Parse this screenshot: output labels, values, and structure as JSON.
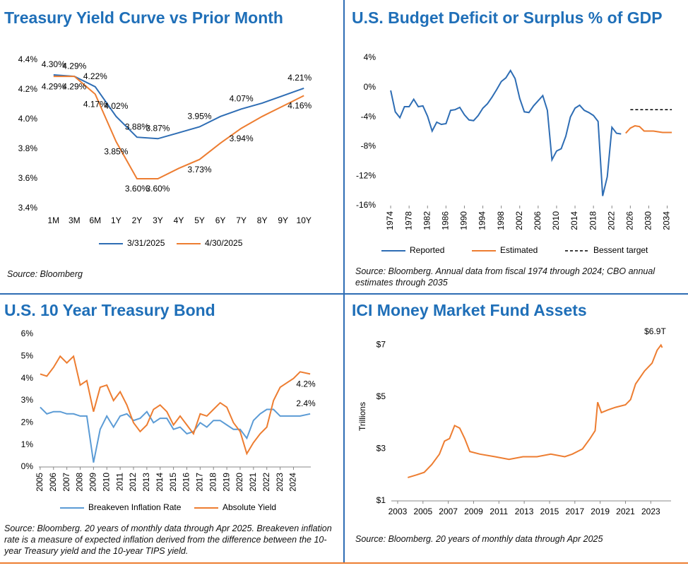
{
  "chart_data": [
    {
      "type": "line",
      "title": "Treasury Yield Curve vs Prior Month",
      "source": "Source: Bloomberg",
      "categories": [
        "1M",
        "3M",
        "6M",
        "1Y",
        "2Y",
        "3Y",
        "4Y",
        "5Y",
        "6Y",
        "7Y",
        "8Y",
        "9Y",
        "10Y"
      ],
      "series": [
        {
          "name": "3/31/2025",
          "color": "#2e6db4",
          "values": [
            4.3,
            4.29,
            4.22,
            4.02,
            3.88,
            3.87,
            3.91,
            3.95,
            4.02,
            4.07,
            4.11,
            4.16,
            4.21
          ],
          "value_labels": [
            "4.30%",
            "4.29%",
            "4.22%",
            "4.02%",
            "3.88%",
            "3.87%",
            null,
            "3.95%",
            null,
            "4.07%",
            null,
            null,
            "4.21%"
          ]
        },
        {
          "name": "4/30/2025",
          "color": "#ed7d31",
          "values": [
            4.29,
            4.29,
            4.17,
            3.85,
            3.6,
            3.6,
            3.67,
            3.73,
            3.84,
            3.94,
            4.02,
            4.09,
            4.16
          ],
          "value_labels": [
            "4.29%",
            "4.29%",
            "4.17%",
            "3.85%",
            "3.60%",
            "3.60%",
            null,
            "3.73%",
            null,
            "3.94%",
            null,
            null,
            "4.16%"
          ]
        }
      ],
      "ylim": [
        3.4,
        4.4
      ],
      "yticks": [
        {
          "value": 3.4,
          "label": "3.4%"
        },
        {
          "value": 3.6,
          "label": "3.6%"
        },
        {
          "value": 3.8,
          "label": "3.8%"
        },
        {
          "value": 4.0,
          "label": "4.0%"
        },
        {
          "value": 4.2,
          "label": "4.2%"
        },
        {
          "value": 4.4,
          "label": "4.4%"
        }
      ],
      "legend": "bottom",
      "grid": false
    },
    {
      "type": "line",
      "title": "U.S. Budget Deficit or Surplus % of GDP",
      "source": "Source: Bloomberg. Annual data from fiscal 1974 through 2024; CBO annual estimates through 2035",
      "series": [
        {
          "name": "Reported",
          "color": "#2e6db4",
          "x": [
            1974,
            1975,
            1976,
            1977,
            1978,
            1979,
            1980,
            1981,
            1982,
            1983,
            1984,
            1985,
            1986,
            1987,
            1988,
            1989,
            1990,
            1991,
            1992,
            1993,
            1994,
            1995,
            1996,
            1997,
            1998,
            1999,
            2000,
            2001,
            2002,
            2003,
            2004,
            2005,
            2006,
            2007,
            2008,
            2009,
            2010,
            2011,
            2012,
            2013,
            2014,
            2015,
            2016,
            2017,
            2018,
            2019,
            2020,
            2021,
            2022,
            2023,
            2024
          ],
          "values": [
            -0.4,
            -3.3,
            -4.1,
            -2.6,
            -2.6,
            -1.6,
            -2.6,
            -2.5,
            -3.9,
            -5.9,
            -4.7,
            -5.0,
            -4.9,
            -3.1,
            -3.0,
            -2.7,
            -3.7,
            -4.4,
            -4.5,
            -3.8,
            -2.8,
            -2.2,
            -1.3,
            -0.3,
            0.8,
            1.3,
            2.3,
            1.2,
            -1.5,
            -3.3,
            -3.4,
            -2.5,
            -1.8,
            -1.1,
            -3.1,
            -9.8,
            -8.6,
            -8.3,
            -6.6,
            -4.0,
            -2.8,
            -2.4,
            -3.1,
            -3.4,
            -3.8,
            -4.6,
            -14.7,
            -12.1,
            -5.4,
            -6.2,
            -6.3
          ]
        },
        {
          "name": "Estimated",
          "color": "#ed7d31",
          "x": [
            2025,
            2026,
            2027,
            2028,
            2029,
            2030,
            2031,
            2032,
            2033,
            2034,
            2035
          ],
          "values": [
            -6.2,
            -5.5,
            -5.2,
            -5.3,
            -5.9,
            -5.9,
            -5.9,
            -6.0,
            -6.1,
            -6.1,
            -6.1
          ]
        },
        {
          "name": "Bessent target",
          "color": "#000000",
          "dash": true,
          "x": [
            2026,
            2035
          ],
          "values": [
            -3,
            -3
          ]
        }
      ],
      "xlim": [
        1972,
        2035.6
      ],
      "xticks": [
        1974,
        1978,
        1982,
        1986,
        1990,
        1994,
        1998,
        2002,
        2006,
        2010,
        2014,
        2018,
        2022,
        2026,
        2030,
        2034
      ],
      "ylim": [
        -16,
        4
      ],
      "yticks": [
        {
          "value": -16,
          "label": "-16%"
        },
        {
          "value": -12,
          "label": "-12%"
        },
        {
          "value": -8,
          "label": "-8%"
        },
        {
          "value": -4,
          "label": "-4%"
        },
        {
          "value": 0,
          "label": "0%"
        },
        {
          "value": 4,
          "label": "4%"
        }
      ],
      "legend": "bottom",
      "grid": false
    },
    {
      "type": "line",
      "title": "U.S. 10 Year Treasury Bond",
      "source": "Source: Bloomberg. 20 years of monthly data through Apr 2025. Breakeven inflation rate is a measure of expected inflation derived from the difference between the 10-year Treasury yield and the 10-year TIPS yield.",
      "series": [
        {
          "name": "Breakeven Inflation Rate",
          "color": "#5b9bd5",
          "x": [
            2005,
            2005.5,
            2006,
            2006.5,
            2007,
            2007.5,
            2008,
            2008.5,
            2009,
            2009.5,
            2010,
            2010.5,
            2011,
            2011.5,
            2012,
            2012.5,
            2013,
            2013.5,
            2014,
            2014.5,
            2015,
            2015.5,
            2016,
            2016.5,
            2017,
            2017.5,
            2018,
            2018.5,
            2019,
            2019.5,
            2020,
            2020.5,
            2021,
            2021.5,
            2022,
            2022.5,
            2023,
            2023.5,
            2024,
            2024.5,
            2025.25
          ],
          "values": [
            2.7,
            2.4,
            2.5,
            2.5,
            2.4,
            2.4,
            2.3,
            2.3,
            0.2,
            1.7,
            2.3,
            1.8,
            2.3,
            2.4,
            2.1,
            2.2,
            2.5,
            2.0,
            2.2,
            2.2,
            1.7,
            1.8,
            1.5,
            1.6,
            2.0,
            1.8,
            2.1,
            2.1,
            1.9,
            1.7,
            1.7,
            1.3,
            2.1,
            2.4,
            2.6,
            2.6,
            2.3,
            2.3,
            2.3,
            2.3,
            2.4
          ],
          "value_labels": [
            null,
            null,
            null,
            null,
            null,
            null,
            null,
            null,
            null,
            null,
            null,
            null,
            null,
            null,
            null,
            null,
            null,
            null,
            null,
            null,
            null,
            null,
            null,
            null,
            null,
            null,
            null,
            null,
            null,
            null,
            null,
            null,
            null,
            null,
            null,
            null,
            null,
            null,
            null,
            null,
            "2.4%"
          ]
        },
        {
          "name": "Absolute Yield",
          "color": "#ed7d31",
          "x": [
            2005,
            2005.5,
            2006,
            2006.5,
            2007,
            2007.5,
            2008,
            2008.5,
            2009,
            2009.5,
            2010,
            2010.5,
            2011,
            2011.5,
            2012,
            2012.5,
            2013,
            2013.5,
            2014,
            2014.5,
            2015,
            2015.5,
            2016,
            2016.5,
            2017,
            2017.5,
            2018,
            2018.5,
            2019,
            2019.5,
            2020,
            2020.5,
            2021,
            2021.5,
            2022,
            2022.5,
            2023,
            2023.5,
            2024,
            2024.5,
            2025.25
          ],
          "values": [
            4.2,
            4.1,
            4.5,
            5.0,
            4.7,
            5.0,
            3.7,
            3.9,
            2.5,
            3.6,
            3.7,
            3.0,
            3.4,
            2.8,
            2.0,
            1.6,
            1.9,
            2.6,
            2.8,
            2.5,
            1.9,
            2.3,
            1.9,
            1.5,
            2.4,
            2.3,
            2.6,
            2.9,
            2.7,
            2.0,
            1.6,
            0.6,
            1.1,
            1.5,
            1.8,
            3.0,
            3.6,
            3.8,
            4.0,
            4.3,
            4.2
          ],
          "value_labels": [
            null,
            null,
            null,
            null,
            null,
            null,
            null,
            null,
            null,
            null,
            null,
            null,
            null,
            null,
            null,
            null,
            null,
            null,
            null,
            null,
            null,
            null,
            null,
            null,
            null,
            null,
            null,
            null,
            null,
            null,
            null,
            null,
            null,
            null,
            null,
            null,
            null,
            null,
            null,
            null,
            "4.2%"
          ]
        }
      ],
      "xlim": [
        2004.9,
        2025.3
      ],
      "xticks": [
        2005,
        2006,
        2007,
        2008,
        2009,
        2010,
        2011,
        2012,
        2013,
        2014,
        2015,
        2016,
        2017,
        2018,
        2019,
        2020,
        2021,
        2022,
        2023,
        2024
      ],
      "ylim": [
        0,
        6
      ],
      "yticks": [
        {
          "value": 0,
          "label": "0%"
        },
        {
          "value": 1,
          "label": "1%"
        },
        {
          "value": 2,
          "label": "2%"
        },
        {
          "value": 3,
          "label": "3%"
        },
        {
          "value": 4,
          "label": "4%"
        },
        {
          "value": 5,
          "label": "5%"
        },
        {
          "value": 6,
          "label": "6%"
        }
      ],
      "legend": "bottom",
      "grid": false
    },
    {
      "type": "line",
      "title": "ICI Money Market Fund Assets",
      "source": "Source: Bloomberg. 20 years of monthly data through Apr 2025",
      "y_label": "Trillions",
      "series": [
        {
          "name": null,
          "color": "#ed7d31",
          "x": [
            2003.8,
            2004.5,
            2005.1,
            2005.7,
            2006.3,
            2006.7,
            2007.1,
            2007.5,
            2007.9,
            2008.3,
            2008.7,
            2009.5,
            2010.7,
            2011.8,
            2012.9,
            2014.0,
            2015.1,
            2016.2,
            2016.8,
            2017.6,
            2018.2,
            2018.6,
            2018.8,
            2019.1,
            2019.6,
            2020.2,
            2021.0,
            2021.4,
            2021.8,
            2022.5,
            2023.1,
            2023.5,
            2023.8,
            2023.9
          ],
          "values": [
            1.9,
            2.0,
            2.1,
            2.4,
            2.8,
            3.3,
            3.4,
            3.9,
            3.8,
            3.4,
            2.9,
            2.8,
            2.7,
            2.6,
            2.7,
            2.7,
            2.8,
            2.7,
            2.8,
            3.0,
            3.4,
            3.7,
            4.8,
            4.4,
            4.5,
            4.6,
            4.7,
            4.9,
            5.5,
            6.0,
            6.3,
            6.8,
            7.0,
            6.9
          ],
          "value_labels": [
            null,
            null,
            null,
            null,
            null,
            null,
            null,
            null,
            null,
            null,
            null,
            null,
            null,
            null,
            null,
            null,
            null,
            null,
            null,
            null,
            null,
            null,
            null,
            null,
            null,
            null,
            null,
            null,
            null,
            null,
            null,
            null,
            null,
            "$6.9T"
          ]
        }
      ],
      "xlim": [
        2002.5,
        2024.6
      ],
      "xticks": [
        2003,
        2005,
        2007,
        2009,
        2011,
        2013,
        2015,
        2017,
        2019,
        2021,
        2023
      ],
      "ylim": [
        1,
        7.5
      ],
      "yticks": [
        {
          "value": 1,
          "label": "$1"
        },
        {
          "value": 3,
          "label": "$3"
        },
        {
          "value": 5,
          "label": "$5"
        },
        {
          "value": 7,
          "label": "$7"
        }
      ],
      "grid": false
    }
  ]
}
